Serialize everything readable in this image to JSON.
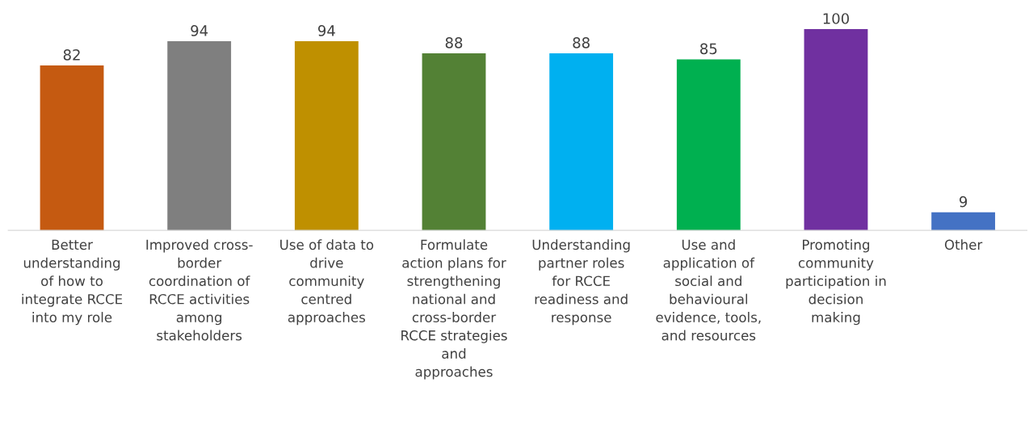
{
  "chart_data": {
    "type": "bar",
    "categories": [
      "Better\nunderstanding\nof how to\nintegrate RCCE\ninto my role",
      "Improved cross-\nborder\ncoordination of\nRCCE activities\namong\nstakeholders",
      "Use of data to\ndrive\ncommunity\ncentred\napproaches",
      "Formulate\naction plans for\nstrengthening\nnational and\ncross-border\nRCCE strategies\nand\napproaches",
      "Understanding\npartner roles\nfor RCCE\nreadiness and\nresponse",
      "Use and\napplication of\nsocial and\nbehavioural\nevidence, tools,\nand resources",
      "Promoting\ncommunity\nparticipation in\ndecision\nmaking",
      "Other"
    ],
    "values": [
      82,
      94,
      94,
      88,
      88,
      85,
      100,
      9
    ],
    "colors": [
      "#c55a11",
      "#7f7f7f",
      "#bf9000",
      "#538135",
      "#00b0f0",
      "#00b050",
      "#7030a0",
      "#4472c4"
    ],
    "data_labels": true
  }
}
